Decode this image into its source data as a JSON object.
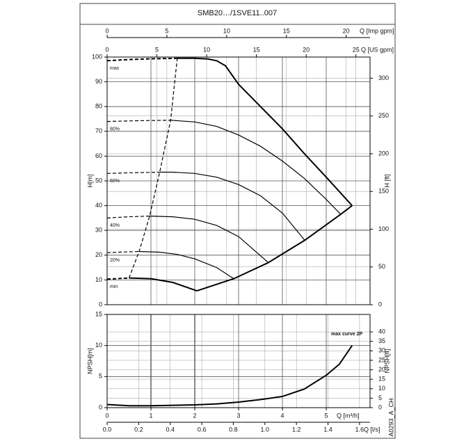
{
  "title": "SMB20…/1SVE11..007",
  "code": "A0293_A_CH",
  "chart_data": [
    {
      "type": "line",
      "ylabel": "H[m]",
      "y2label": "H [ft]",
      "xlim": [
        0,
        6
      ],
      "ylim": [
        0,
        100
      ],
      "yticks": [
        0,
        10,
        20,
        30,
        40,
        50,
        60,
        70,
        80,
        90,
        100
      ],
      "y2lim": [
        0,
        328.084
      ],
      "y2ticks": [
        0,
        50,
        100,
        150,
        200,
        250,
        300
      ],
      "grid": true,
      "x_axes": [
        {
          "label": "Q [Imp gpm]",
          "side": "top",
          "lim": [
            0,
            21.997
          ],
          "ticks": [
            0,
            5,
            10,
            15,
            20
          ]
        },
        {
          "label": "Q [US gpm]",
          "side": "top",
          "lim": [
            0,
            26.417
          ],
          "ticks": [
            0,
            5,
            10,
            15,
            20,
            25
          ]
        }
      ],
      "series": [
        {
          "name": "max",
          "color": "#000",
          "dash": true,
          "width": 2,
          "x": [
            0,
            0.5,
            1,
            1.6
          ],
          "values": [
            98.5,
            99,
            99.3,
            99.5
          ]
        },
        {
          "color": "#000",
          "width": 2,
          "x": [
            1.6,
            2,
            2.3,
            2.5,
            2.7,
            3,
            3.5,
            4,
            4.5,
            5,
            5.59
          ],
          "values": [
            99.5,
            99.5,
            99.2,
            98.5,
            96.5,
            89,
            80,
            71,
            61,
            51.5,
            40
          ]
        },
        {
          "name": "80%",
          "color": "#000",
          "dash": true,
          "width": 1.2,
          "x": [
            0,
            0.7,
            1.45
          ],
          "values": [
            74,
            74.3,
            74.5
          ]
        },
        {
          "color": "#000",
          "width": 1.2,
          "x": [
            1.45,
            2,
            2.5,
            3,
            3.5,
            4,
            4.5,
            5,
            5.33
          ],
          "values": [
            74.5,
            73.8,
            72,
            68.5,
            64,
            58,
            51,
            42.5,
            36.5
          ]
        },
        {
          "name": "60%",
          "color": "#000",
          "dash": true,
          "width": 1.2,
          "x": [
            0,
            0.6,
            1.2
          ],
          "values": [
            53,
            53.3,
            53.5
          ]
        },
        {
          "color": "#000",
          "width": 1.2,
          "x": [
            1.2,
            1.5,
            2,
            2.5,
            3,
            3.5,
            4,
            4.51
          ],
          "values": [
            53.5,
            53.5,
            53,
            51.5,
            48.5,
            44,
            37,
            26
          ]
        },
        {
          "name": "40%",
          "color": "#000",
          "dash": true,
          "width": 1.2,
          "x": [
            0,
            0.5,
            0.97
          ],
          "values": [
            35,
            35.5,
            35.8
          ]
        },
        {
          "color": "#000",
          "width": 1.2,
          "x": [
            0.97,
            1.5,
            2,
            2.5,
            3,
            3.68
          ],
          "values": [
            35.8,
            35.5,
            34.5,
            32,
            27.5,
            17
          ]
        },
        {
          "name": "20%",
          "color": "#000",
          "dash": true,
          "width": 1.2,
          "x": [
            0,
            0.4,
            0.73
          ],
          "values": [
            21,
            21.3,
            21.5
          ]
        },
        {
          "color": "#000",
          "width": 1.2,
          "x": [
            0.73,
            1.2,
            1.6,
            2,
            2.5,
            2.89
          ],
          "values": [
            21.5,
            21.2,
            20.3,
            18.5,
            15,
            10.5
          ]
        },
        {
          "name": "min",
          "color": "#000",
          "dash": true,
          "width": 2,
          "x": [
            0,
            0.5
          ],
          "values": [
            10.3,
            10.8
          ]
        },
        {
          "color": "#000",
          "width": 2,
          "x": [
            0.5,
            1,
            1.5,
            2.05
          ],
          "values": [
            10.8,
            10.5,
            9,
            5.6
          ]
        },
        {
          "color": "#000",
          "width": 2,
          "x": [
            2.05,
            2.89,
            3.68,
            4.51,
            5.33,
            5.59
          ],
          "values": [
            5.6,
            10.5,
            17,
            26,
            36.5,
            40
          ]
        },
        {
          "color": "#000",
          "dash": true,
          "width": 1.2,
          "x": [
            0.5,
            0.73,
            0.97,
            1.2,
            1.45,
            1.6
          ],
          "values": [
            10.8,
            21.5,
            35.8,
            53.5,
            74.5,
            99.5
          ]
        }
      ]
    },
    {
      "type": "line",
      "ylabel": "NPSH[m]",
      "y2label": "NPSH[ft]",
      "annotation": "max curve 2P",
      "xlabel": "Q [m³/h]",
      "xlim": [
        0,
        6
      ],
      "xticks": [
        0,
        1,
        2,
        3,
        4,
        5
      ],
      "ylim": [
        0,
        15
      ],
      "yticks": [
        0,
        5,
        10,
        15
      ],
      "y2lim": [
        0,
        49.2126
      ],
      "y2ticks": [
        0,
        5,
        10,
        15,
        20,
        25,
        30,
        35,
        40
      ],
      "grid": true,
      "x_axes": [
        {
          "label": "Q [l/s]",
          "side": "bottom",
          "lim": [
            0,
            1.66667
          ],
          "ticks": [
            {
              "value": 0,
              "label": "0.0"
            },
            0.2,
            0.4,
            0.6,
            0.8,
            {
              "value": 1,
              "label": "1.0"
            },
            1.2,
            1.4,
            1.6
          ]
        }
      ],
      "series": [
        {
          "color": "#000",
          "width": 2,
          "x": [
            0,
            0.5,
            1,
            2,
            2.5,
            3,
            3.5,
            4,
            4.5,
            5,
            5.3,
            5.59
          ],
          "values": [
            0.5,
            0.3,
            0.3,
            0.45,
            0.6,
            0.9,
            1.3,
            1.8,
            3,
            5.2,
            7,
            10
          ]
        }
      ]
    }
  ]
}
